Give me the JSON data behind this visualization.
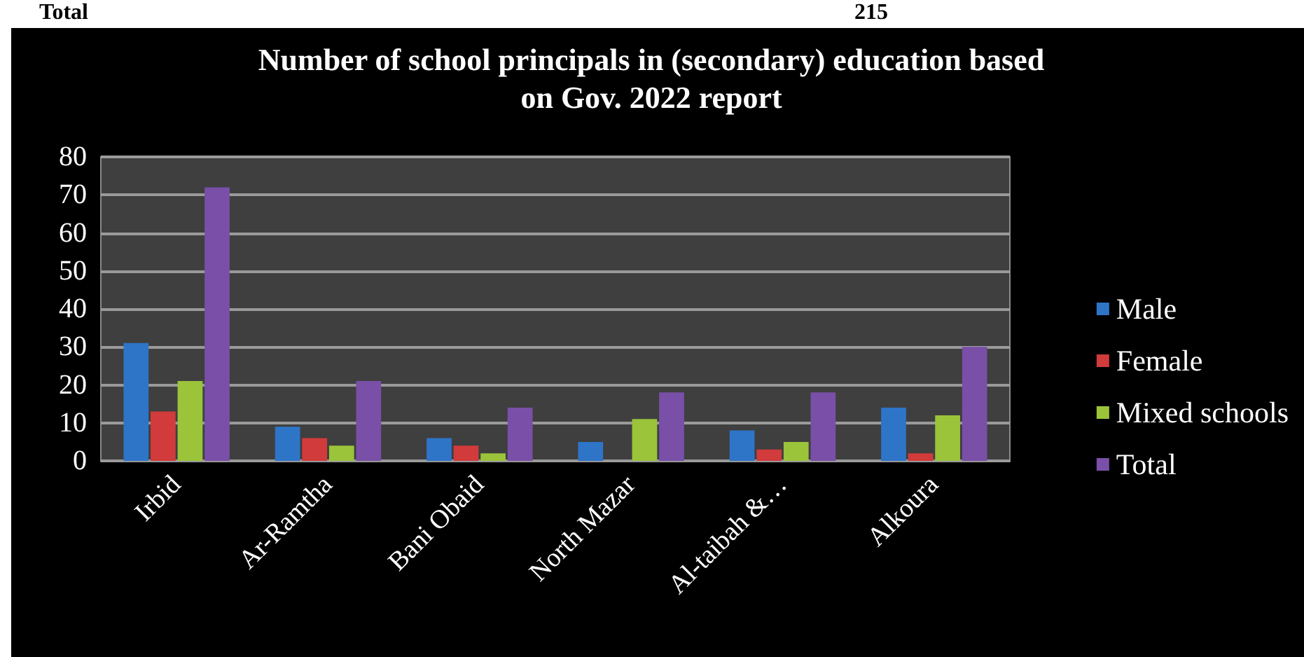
{
  "chart_data": {
    "type": "bar",
    "title": "Number of school principals in (secondary) education based\non Gov. 2022 report",
    "categories": [
      "Irbid",
      "Ar-Ramtha",
      "Bani Obaid",
      "North Mazar",
      "Al-taibah &…",
      "Alkoura"
    ],
    "series": [
      {
        "name": "Male",
        "color": "#2e75c8",
        "values": [
          31,
          9,
          6,
          5,
          8,
          14
        ]
      },
      {
        "name": "Female",
        "color": "#d23b3b",
        "values": [
          13,
          6,
          4,
          0,
          3,
          2
        ]
      },
      {
        "name": "Mixed schools",
        "color": "#9bc43a",
        "values": [
          21,
          4,
          2,
          11,
          5,
          12
        ]
      },
      {
        "name": "Total",
        "color": "#7a4fa8",
        "values": [
          72,
          21,
          14,
          18,
          18,
          30
        ]
      }
    ],
    "ylim": [
      0,
      80
    ],
    "yticks": [
      0,
      10,
      20,
      30,
      40,
      50,
      60,
      70,
      80
    ],
    "grid": "y",
    "legend": "right",
    "annotations": [
      "Total",
      "215"
    ]
  }
}
